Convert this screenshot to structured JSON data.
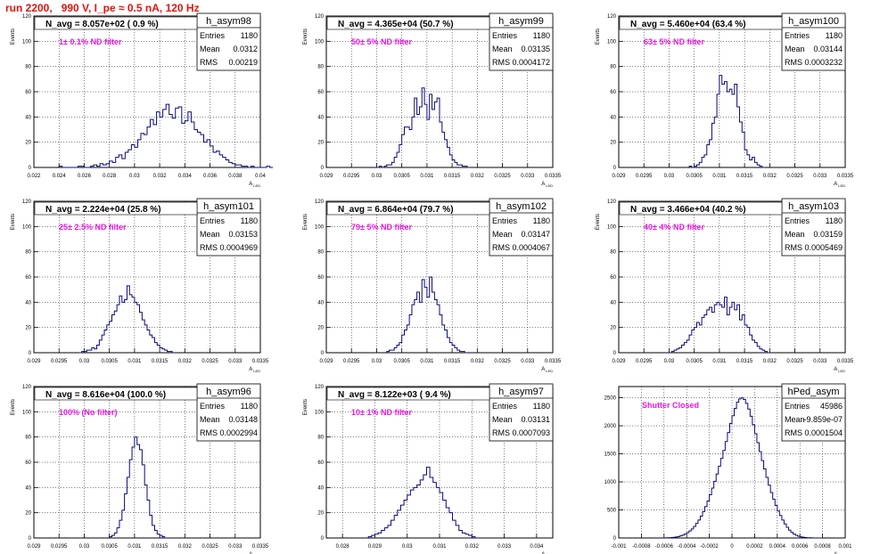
{
  "page_title": "run 2200,   990 V, I_pe ≈ 0.5 nA, 120 Hz",
  "colors": {
    "title": "#e8120c",
    "annotation": "#e817e0",
    "histogram": "#0a0a7a",
    "grid": "#000000"
  },
  "stats_labels": {
    "entries": "Entries",
    "mean": "Mean",
    "rms": "RMS"
  },
  "chart_data": [
    {
      "type": "histogram",
      "hist_name": "h_asym98",
      "navg": "N_avg = 8.057e+02 ( 0.9 %)",
      "note": "1± 0.1% ND filter",
      "entries": "1180",
      "mean": "0.0312",
      "rms": "0.00219",
      "xlabel": "A_{LED}",
      "ylabel": "Events",
      "xlim": [
        0.022,
        0.04
      ],
      "ylim": [
        0,
        120
      ],
      "grid": true,
      "xticks": [
        0.022,
        0.024,
        0.026,
        0.028,
        0.03,
        0.032,
        0.034,
        0.036,
        0.038,
        0.04
      ],
      "xtick_labels": [
        "0.022",
        "0.024",
        "0.026",
        "0.028",
        "0.03",
        "0.032",
        "0.034",
        "0.036",
        "0.038",
        "0.04"
      ],
      "yticks": [
        0,
        20,
        40,
        60,
        80,
        100,
        120
      ],
      "ytick_labels": [
        "0",
        "20",
        "40",
        "60",
        "80",
        "100",
        "120"
      ],
      "x_start": 0.024,
      "bin_width": 0.00025,
      "counts": [
        1,
        0,
        0,
        0,
        0,
        0,
        1,
        1,
        0,
        0,
        1,
        2,
        1,
        3,
        2,
        3,
        5,
        4,
        8,
        10,
        7,
        12,
        14,
        18,
        16,
        22,
        27,
        26,
        32,
        38,
        34,
        44,
        40,
        46,
        50,
        42,
        39,
        47,
        48,
        35,
        37,
        44,
        36,
        30,
        28,
        26,
        20,
        22,
        17,
        12,
        13,
        10,
        8,
        6,
        4,
        3,
        2,
        2,
        1,
        1,
        0,
        1,
        0,
        0,
        0,
        0,
        1,
        0
      ]
    },
    {
      "type": "histogram",
      "hist_name": "h_asym99",
      "navg": "N_avg = 4.365e+04 (50.7 %)",
      "note": "50± 5% ND filter",
      "entries": "1180",
      "mean": "0.03135",
      "rms": "0.0004172",
      "xlabel": "A_{LED}",
      "ylabel": "Events",
      "xlim": [
        0.029,
        0.0335
      ],
      "ylim": [
        0,
        120
      ],
      "grid": true,
      "xticks": [
        0.029,
        0.0295,
        0.03,
        0.0305,
        0.031,
        0.0315,
        0.032,
        0.0325,
        0.033,
        0.0335
      ],
      "xtick_labels": [
        "0.029",
        "0.0295",
        "0.03",
        "0.0305",
        "0.031",
        "0.0315",
        "0.032",
        "0.0325",
        "0.033",
        "0.0335"
      ],
      "yticks": [
        0,
        20,
        40,
        60,
        80,
        100,
        120
      ],
      "ytick_labels": [
        "0",
        "20",
        "40",
        "60",
        "80",
        "100",
        "120"
      ],
      "x_start": 0.03,
      "bin_width": 5e-05,
      "counts": [
        0,
        1,
        0,
        1,
        2,
        2,
        4,
        8,
        12,
        18,
        26,
        32,
        32,
        30,
        40,
        55,
        42,
        48,
        63,
        50,
        38,
        58,
        46,
        52,
        55,
        36,
        28,
        22,
        16,
        10,
        6,
        4,
        2,
        2,
        1,
        1,
        0
      ]
    },
    {
      "type": "histogram",
      "hist_name": "h_asym100",
      "navg": "N_avg = 5.460e+04 (63.4 %)",
      "note": "63± 5% ND filter",
      "entries": "1180",
      "mean": "0.03144",
      "rms": "0.0003232",
      "xlabel": "A_{LED}",
      "ylabel": "Events",
      "xlim": [
        0.029,
        0.0335
      ],
      "ylim": [
        0,
        120
      ],
      "grid": true,
      "xticks": [
        0.029,
        0.0295,
        0.03,
        0.0305,
        0.031,
        0.0315,
        0.032,
        0.0325,
        0.033,
        0.0335
      ],
      "xtick_labels": [
        "0.029",
        "0.0295",
        "0.03",
        "0.0305",
        "0.031",
        "0.0315",
        "0.032",
        "0.0325",
        "0.033",
        "0.0335"
      ],
      "yticks": [
        0,
        20,
        40,
        60,
        80,
        100,
        120
      ],
      "ytick_labels": [
        "0",
        "20",
        "40",
        "60",
        "80",
        "100",
        "120"
      ],
      "x_start": 0.0304,
      "bin_width": 5e-05,
      "counts": [
        1,
        0,
        1,
        2,
        4,
        8,
        10,
        18,
        22,
        35,
        40,
        58,
        73,
        66,
        68,
        60,
        62,
        58,
        66,
        48,
        36,
        28,
        14,
        10,
        6,
        8,
        4,
        2,
        1,
        0
      ]
    },
    {
      "type": "histogram",
      "hist_name": "h_asym101",
      "navg": "N_avg = 2.224e+04 (25.8 %)",
      "note": "25± 2.5% ND filter",
      "entries": "1180",
      "mean": "0.03153",
      "rms": "0.0004969",
      "xlabel": "A_{LED}",
      "ylabel": "Events",
      "xlim": [
        0.029,
        0.0335
      ],
      "ylim": [
        0,
        120
      ],
      "grid": true,
      "xticks": [
        0.029,
        0.0295,
        0.03,
        0.0305,
        0.031,
        0.0315,
        0.032,
        0.0325,
        0.033,
        0.0335
      ],
      "xtick_labels": [
        "0.029",
        "0.0295",
        "0.03",
        "0.0305",
        "0.031",
        "0.0315",
        "0.032",
        "0.0325",
        "0.033",
        "0.0335"
      ],
      "yticks": [
        0,
        20,
        40,
        60,
        80,
        100,
        120
      ],
      "ytick_labels": [
        "0",
        "20",
        "40",
        "60",
        "80",
        "100",
        "120"
      ],
      "x_start": 0.0299,
      "bin_width": 5e-05,
      "counts": [
        0,
        1,
        1,
        2,
        2,
        4,
        3,
        6,
        10,
        14,
        18,
        22,
        25,
        30,
        33,
        38,
        45,
        40,
        42,
        53,
        46,
        44,
        40,
        38,
        32,
        26,
        22,
        18,
        14,
        12,
        8,
        6,
        4,
        3,
        2,
        1,
        1,
        0
      ]
    },
    {
      "type": "histogram",
      "hist_name": "h_asym102",
      "navg": "N_avg = 6.864e+04 (79.7 %)",
      "note": "79± 5% ND filter",
      "entries": "1180",
      "mean": "0.03147",
      "rms": "0.0004067",
      "xlabel": "A_{LED}",
      "ylabel": "Events",
      "xlim": [
        0.029,
        0.0335
      ],
      "ylim": [
        0,
        120
      ],
      "grid": true,
      "xticks": [
        0.029,
        0.0295,
        0.03,
        0.0305,
        0.031,
        0.0315,
        0.032,
        0.0325,
        0.033,
        0.0335
      ],
      "xtick_labels": [
        "0.029",
        "0.0295",
        "0.03",
        "0.0305",
        "0.031",
        "0.0315",
        "0.032",
        "0.0325",
        "0.033",
        "0.0335"
      ],
      "yticks": [
        0,
        20,
        40,
        60,
        80,
        100,
        120
      ],
      "ytick_labels": [
        "0",
        "20",
        "40",
        "60",
        "80",
        "100",
        "120"
      ],
      "x_start": 0.0302,
      "bin_width": 5e-05,
      "counts": [
        1,
        2,
        2,
        4,
        6,
        8,
        14,
        18,
        22,
        30,
        38,
        42,
        48,
        40,
        58,
        52,
        44,
        60,
        48,
        42,
        38,
        30,
        22,
        18,
        12,
        8,
        6,
        4,
        2,
        1,
        1,
        0
      ]
    },
    {
      "type": "histogram",
      "hist_name": "h_asym103",
      "navg": "N_avg = 3.466e+04 (40.2 %)",
      "note": "40± 4% ND filter",
      "entries": "1180",
      "mean": "0.03159",
      "rms": "0.0005469",
      "xlabel": "A_{LED}",
      "ylabel": "Events",
      "xlim": [
        0.029,
        0.0335
      ],
      "ylim": [
        0,
        120
      ],
      "grid": true,
      "xticks": [
        0.029,
        0.0295,
        0.03,
        0.0305,
        0.031,
        0.0315,
        0.032,
        0.0325,
        0.033,
        0.0335
      ],
      "xtick_labels": [
        "0.029",
        "0.0295",
        "0.03",
        "0.0305",
        "0.031",
        "0.0315",
        "0.032",
        "0.0325",
        "0.033",
        "0.0335"
      ],
      "yticks": [
        0,
        20,
        40,
        60,
        80,
        100,
        120
      ],
      "ytick_labels": [
        "0",
        "20",
        "40",
        "60",
        "80",
        "100",
        "120"
      ],
      "x_start": 0.03,
      "bin_width": 5e-05,
      "counts": [
        0,
        1,
        2,
        3,
        4,
        6,
        8,
        10,
        14,
        18,
        20,
        24,
        22,
        28,
        30,
        34,
        36,
        32,
        38,
        40,
        38,
        36,
        44,
        30,
        36,
        40,
        34,
        38,
        26,
        30,
        22,
        20,
        14,
        10,
        8,
        5,
        3,
        2,
        1,
        0
      ]
    },
    {
      "type": "histogram",
      "hist_name": "h_asym96",
      "navg": "N_avg = 8.616e+04 (100.0 %)",
      "note": "100% (No filter)",
      "entries": "1180",
      "mean": "0.03148",
      "rms": "0.0002994",
      "xlabel": "A_{LED}",
      "ylabel": "Events",
      "xlim": [
        0.029,
        0.0335
      ],
      "ylim": [
        0,
        120
      ],
      "grid": true,
      "xticks": [
        0.029,
        0.0295,
        0.03,
        0.0305,
        0.031,
        0.0315,
        0.032,
        0.0325,
        0.033,
        0.0335
      ],
      "xtick_labels": [
        "0.029",
        "0.0295",
        "0.03",
        "0.0305",
        "0.031",
        "0.0315",
        "0.032",
        "0.0325",
        "0.033",
        "0.0335"
      ],
      "yticks": [
        0,
        20,
        40,
        60,
        80,
        100,
        120
      ],
      "ytick_labels": [
        "0",
        "20",
        "40",
        "60",
        "80",
        "100",
        "120"
      ],
      "x_start": 0.0305,
      "bin_width": 5e-05,
      "counts": [
        1,
        2,
        4,
        8,
        14,
        22,
        35,
        48,
        62,
        72,
        80,
        74,
        70,
        58,
        42,
        30,
        18,
        10,
        6,
        3,
        2,
        1,
        0
      ]
    },
    {
      "type": "histogram",
      "hist_name": "h_asym97",
      "navg": "N_avg = 8.122e+03 ( 9.4 %)",
      "note": "10± 1% ND filter",
      "entries": "1180",
      "mean": "0.03131",
      "rms": "0.0007093",
      "xlabel": "A_{LED}",
      "ylabel": "Events",
      "xlim": [
        0.0275,
        0.0345
      ],
      "ylim": [
        0,
        120
      ],
      "grid": true,
      "xticks": [
        0.028,
        0.029,
        0.03,
        0.031,
        0.032,
        0.033,
        0.034
      ],
      "xtick_labels": [
        "0.028",
        "0.029",
        "0.03",
        "0.031",
        "0.032",
        "0.033",
        "0.034"
      ],
      "yticks": [
        0,
        20,
        40,
        60,
        80,
        100,
        120
      ],
      "ytick_labels": [
        "0",
        "20",
        "40",
        "60",
        "80",
        "100",
        "120"
      ],
      "x_start": 0.0288,
      "bin_width": 0.0001,
      "counts": [
        1,
        2,
        3,
        4,
        6,
        8,
        10,
        14,
        18,
        22,
        26,
        30,
        34,
        38,
        40,
        42,
        46,
        50,
        56,
        48,
        44,
        40,
        36,
        30,
        24,
        20,
        14,
        10,
        6,
        4,
        3,
        2,
        1,
        0
      ]
    },
    {
      "type": "histogram",
      "hist_name": "hPed_asym",
      "navg": "",
      "note": "Shutter Closed",
      "entries": "45986",
      "mean": "-9.859e-07",
      "rms": "0.0001504",
      "xlabel": "A_{LED}",
      "ylabel": "",
      "xlim": [
        -0.001,
        0.001
      ],
      "ylim": [
        0,
        2700
      ],
      "grid": true,
      "xticks": [
        -0.001,
        -0.0008,
        -0.0006,
        -0.0004,
        -0.0002,
        0,
        0.0002,
        0.0004,
        0.0006,
        0.0008,
        0.001
      ],
      "xtick_labels": [
        "-0.001",
        "-0.0008",
        "-0.0006",
        "-0.0004",
        "-0.0002",
        "0",
        "0.0002",
        "0.0004",
        "0.0006",
        "0.0008",
        "0.001"
      ],
      "yticks": [
        0,
        500,
        1000,
        1500,
        2000,
        2500
      ],
      "ytick_labels": [
        "0",
        "500",
        "1000",
        "1500",
        "2000",
        "2500"
      ],
      "x_start": -0.0006,
      "bin_width": 2e-05,
      "counts": [
        2,
        3,
        5,
        8,
        12,
        18,
        26,
        38,
        52,
        70,
        95,
        125,
        160,
        205,
        260,
        320,
        390,
        470,
        560,
        660,
        770,
        890,
        1010,
        1140,
        1280,
        1420,
        1560,
        1720,
        1880,
        2040,
        2180,
        2310,
        2420,
        2480,
        2500,
        2470,
        2400,
        2300,
        2170,
        2020,
        1860,
        1700,
        1540,
        1380,
        1230,
        1080,
        940,
        810,
        690,
        580,
        480,
        400,
        320,
        250,
        190,
        140,
        100,
        70,
        48,
        32,
        20,
        13,
        8,
        5,
        3,
        2,
        1,
        1,
        0,
        0
      ]
    }
  ]
}
